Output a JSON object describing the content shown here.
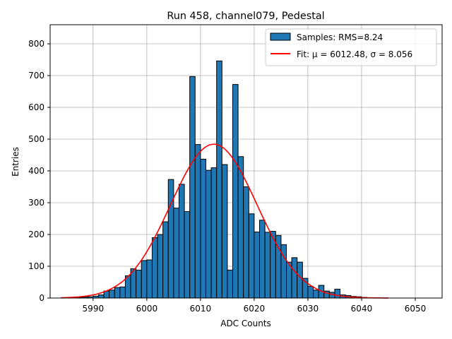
{
  "chart_data": {
    "type": "bar",
    "title": "Run 458, channel079, Pedestal",
    "xlabel": "ADC Counts",
    "ylabel": "Entries",
    "xlim": [
      5982,
      6055
    ],
    "ylim": [
      0,
      860
    ],
    "xticks": [
      5990,
      6000,
      6010,
      6020,
      6030,
      6040,
      6050
    ],
    "yticks": [
      0,
      100,
      200,
      300,
      400,
      500,
      600,
      700,
      800
    ],
    "grid": true,
    "bin_width": 1,
    "bar_color": "#1f77b4",
    "fit_color": "#ff0000",
    "bins": [
      5986,
      5987,
      5988,
      5989,
      5990,
      5991,
      5992,
      5993,
      5994,
      5995,
      5996,
      5997,
      5998,
      5999,
      6000,
      6001,
      6002,
      6003,
      6004,
      6005,
      6006,
      6007,
      6008,
      6009,
      6010,
      6011,
      6012,
      6013,
      6014,
      6015,
      6016,
      6017,
      6018,
      6019,
      6020,
      6021,
      6022,
      6023,
      6024,
      6025,
      6026,
      6027,
      6028,
      6029,
      6030,
      6031,
      6032,
      6033,
      6034,
      6035,
      6036,
      6037,
      6038,
      6039,
      6040,
      6041
    ],
    "counts": [
      1,
      2,
      3,
      4,
      6,
      10,
      22,
      25,
      33,
      35,
      70,
      92,
      88,
      118,
      120,
      190,
      200,
      240,
      373,
      283,
      358,
      272,
      697,
      483,
      437,
      402,
      410,
      746,
      420,
      88,
      672,
      445,
      350,
      265,
      208,
      245,
      207,
      210,
      197,
      168,
      113,
      127,
      113,
      62,
      37,
      25,
      40,
      22,
      18,
      28,
      10,
      8,
      5,
      4,
      2,
      1
    ],
    "series": [
      {
        "name": "Samples: RMS=8.24",
        "kind": "histogram"
      },
      {
        "name": "Fit: μ = 6012.48, σ = 8.056",
        "kind": "gaussian",
        "mu": 6012.48,
        "sigma": 8.056,
        "amplitude": 484,
        "x_range": [
          5984,
          6045
        ]
      }
    ],
    "legend": {
      "position": "upper-right",
      "samples_label": "Samples: RMS=8.24",
      "fit_label": "Fit: μ = 6012.48, σ = 8.056"
    }
  }
}
